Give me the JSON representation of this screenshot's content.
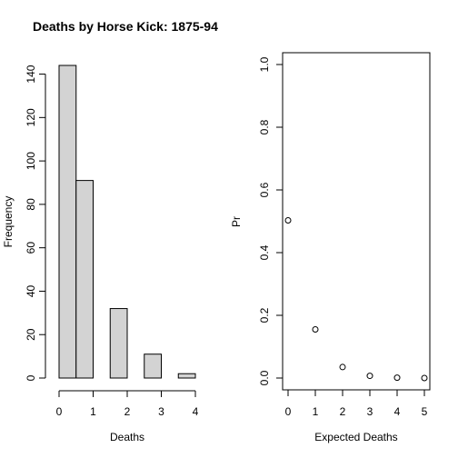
{
  "title": "Deaths by Horse Kick: 1875-94",
  "chart_data": [
    {
      "type": "bar",
      "name": "histogram",
      "xlabel": "Deaths",
      "ylabel": "Frequency",
      "bins": [
        {
          "start": 0.0,
          "end": 0.5,
          "count": 144
        },
        {
          "start": 0.5,
          "end": 1.0,
          "count": 91
        },
        {
          "start": 1.5,
          "end": 2.0,
          "count": 32
        },
        {
          "start": 2.5,
          "end": 3.0,
          "count": 11
        },
        {
          "start": 3.5,
          "end": 4.0,
          "count": 2
        }
      ],
      "xlim": [
        0,
        4
      ],
      "ylim": [
        0,
        144
      ],
      "xticks": [
        0,
        1,
        2,
        3,
        4
      ],
      "yticks": [
        0,
        20,
        40,
        60,
        80,
        100,
        120,
        140
      ],
      "grid": false
    },
    {
      "type": "scatter",
      "name": "expected",
      "xlabel": "Expected Deaths",
      "ylabel": "Pr",
      "x": [
        0,
        1,
        2,
        3,
        4,
        5
      ],
      "y": [
        0.503,
        0.155,
        0.035,
        0.007,
        0.001,
        0.0
      ],
      "xlim": [
        0,
        5
      ],
      "ylim": [
        0,
        1
      ],
      "xticks": [
        0,
        1,
        2,
        3,
        4,
        5
      ],
      "yticks": [
        "0.0",
        "0.2",
        "0.4",
        "0.6",
        "0.8",
        "1.0"
      ],
      "grid": false
    }
  ]
}
